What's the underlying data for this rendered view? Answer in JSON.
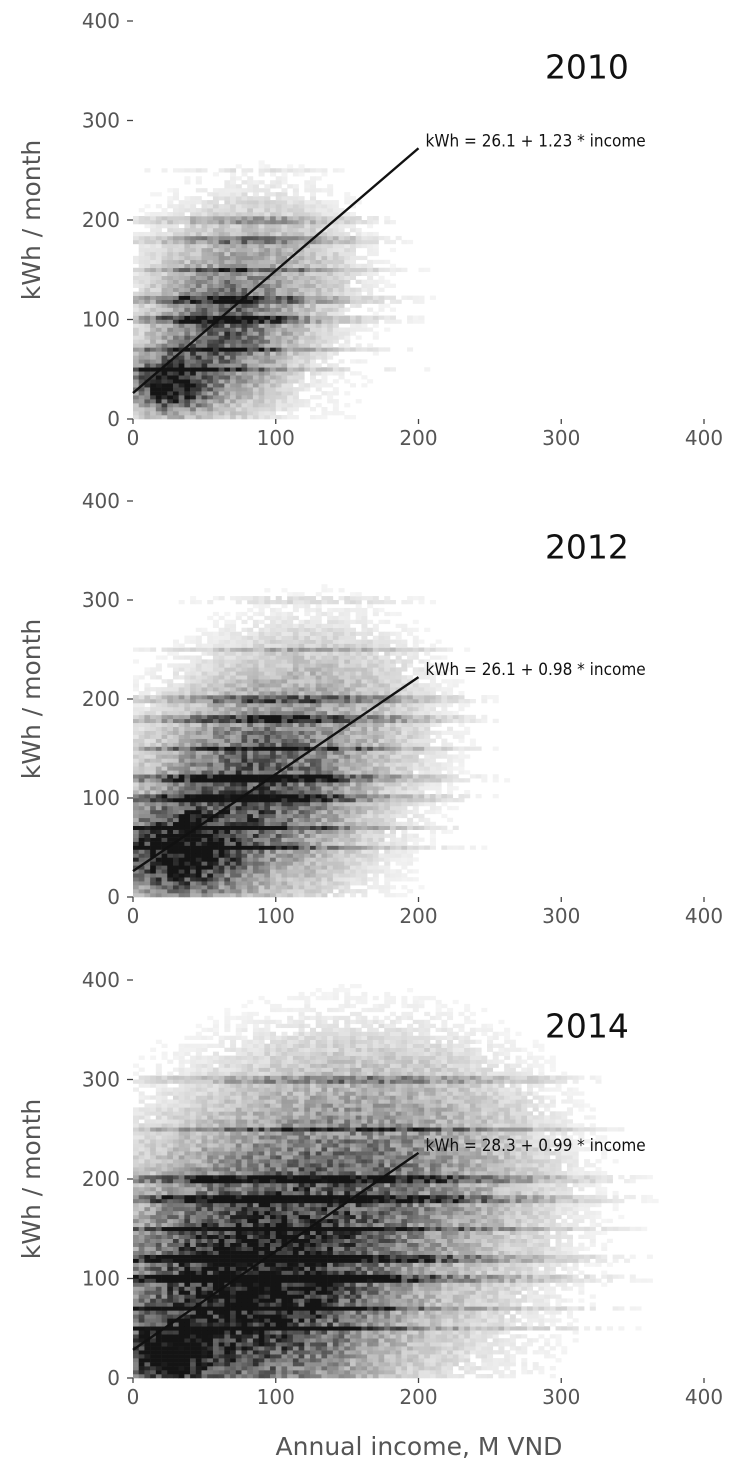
{
  "xlabel": "Annual income, M VND",
  "ylabel": "kWh / month",
  "chart_data": [
    {
      "type": "heatmap",
      "title": "2010",
      "xlabel": "",
      "ylabel": "kWh / month",
      "xlim": [
        0,
        400
      ],
      "ylim": [
        0,
        400
      ],
      "xticks": [
        "0",
        "100",
        "200",
        "300",
        "400"
      ],
      "yticks": [
        "0",
        "100",
        "200",
        "300",
        "400"
      ],
      "grid": false,
      "colormap": "greys",
      "fit_line": {
        "intercept": 26.1,
        "slope": 1.23,
        "x_range": [
          0,
          200
        ],
        "label": "kWh = 26.1 + 1.23 * income"
      },
      "density_notes": "dense core near income 10-40, kWh 20-60; horizontal bands at round kWh values (50, 100, 150, 200, 250, 300)"
    },
    {
      "type": "heatmap",
      "title": "2012",
      "xlabel": "",
      "ylabel": "kWh / month",
      "xlim": [
        0,
        400
      ],
      "ylim": [
        0,
        400
      ],
      "xticks": [
        "0",
        "100",
        "200",
        "300",
        "400"
      ],
      "yticks": [
        "0",
        "100",
        "200",
        "300",
        "400"
      ],
      "grid": false,
      "colormap": "greys",
      "fit_line": {
        "intercept": 26.1,
        "slope": 0.98,
        "x_range": [
          0,
          200
        ],
        "label": "kWh = 26.1 + 0.98 * income"
      },
      "density_notes": "dense core near income 10-60, kWh 20-80; wider spread than 2010"
    },
    {
      "type": "heatmap",
      "title": "2014",
      "xlabel": "Annual income, M VND",
      "ylabel": "kWh / month",
      "xlim": [
        0,
        400
      ],
      "ylim": [
        0,
        400
      ],
      "xticks": [
        "0",
        "100",
        "200",
        "300",
        "400"
      ],
      "yticks": [
        "0",
        "100",
        "200",
        "300",
        "400"
      ],
      "grid": false,
      "colormap": "greys",
      "fit_line": {
        "intercept": 28.3,
        "slope": 0.99,
        "x_range": [
          0,
          200
        ],
        "label": "kWh = 28.3 + 0.99 * income"
      },
      "density_notes": "largest sample; dense core near income 10-40, kWh 10-40; broad cloud extending to income 300+"
    }
  ]
}
